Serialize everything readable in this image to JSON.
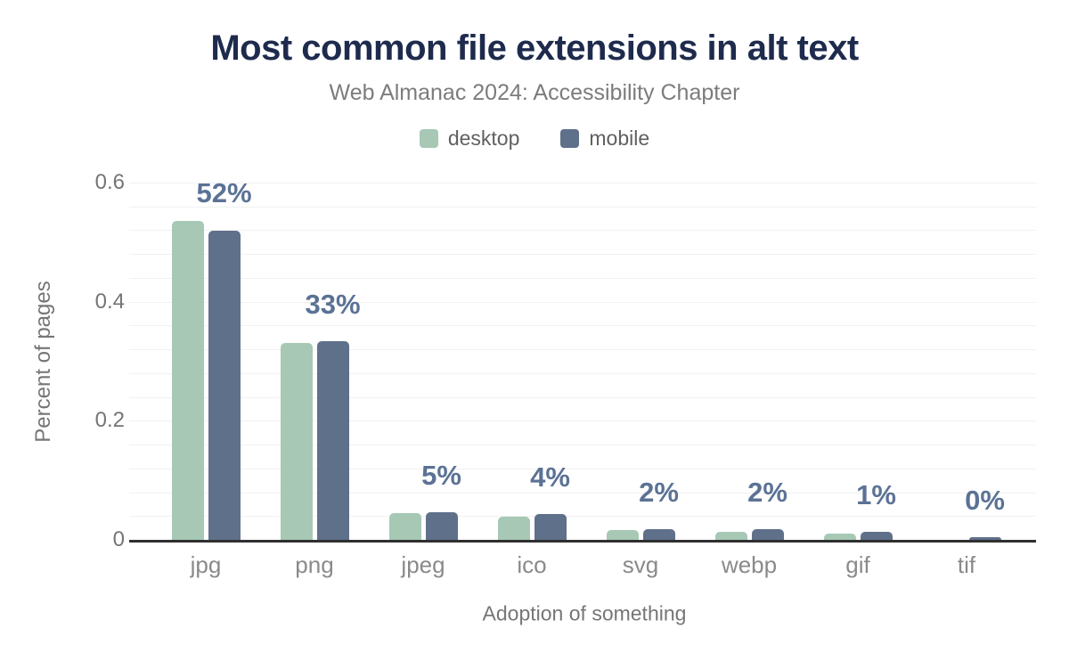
{
  "chart_data": {
    "type": "bar",
    "title": "Most common file extensions in alt text",
    "subtitle": "Web Almanac 2024: Accessibility Chapter",
    "categories": [
      "jpg",
      "png",
      "jpeg",
      "ico",
      "svg",
      "webp",
      "gif",
      "tif"
    ],
    "series": [
      {
        "name": "desktop",
        "color": "#a6c8b5",
        "values": [
          0.535,
          0.33,
          0.045,
          0.039,
          0.017,
          0.014,
          0.011,
          0.0005
        ]
      },
      {
        "name": "mobile",
        "color": "#5f708a",
        "values": [
          0.52,
          0.333,
          0.047,
          0.043,
          0.018,
          0.018,
          0.014,
          0.004
        ]
      }
    ],
    "bar_labels": [
      "52%",
      "33%",
      "5%",
      "4%",
      "2%",
      "2%",
      "1%",
      "0%"
    ],
    "xlabel": "Adoption of something",
    "ylabel": "Percent of pages",
    "ylim": [
      0,
      0.6
    ],
    "yticks": [
      {
        "value": 0,
        "label": "0"
      },
      {
        "value": 0.2,
        "label": "0.2"
      },
      {
        "value": 0.4,
        "label": "0.4"
      },
      {
        "value": 0.6,
        "label": "0.6"
      }
    ],
    "grid": "on",
    "grid_step": 0.04,
    "legend_position": "top",
    "colors": {
      "title": "#1e2b4d",
      "subtitle": "#7c7c7c",
      "value_label": "#5b7295",
      "tick_text": "#757575",
      "category_text": "#8a8a8a",
      "axis_title_text": "#767676",
      "axis_line": "#2f2f2f",
      "gridline": "#f1f1f1",
      "background": "#ffffff"
    }
  }
}
